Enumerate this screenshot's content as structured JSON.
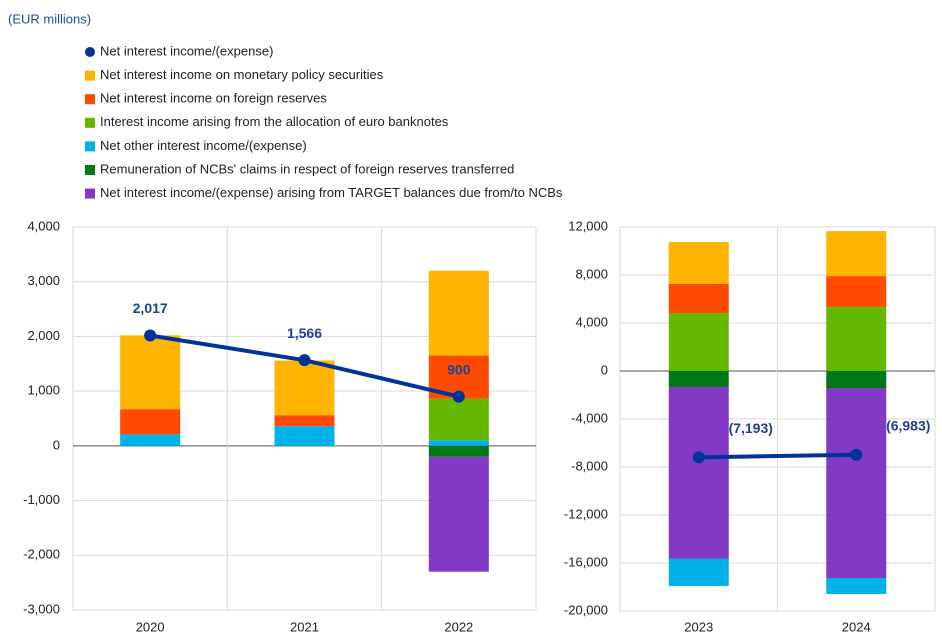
{
  "chart_data": {
    "type": "bar",
    "stacked": true,
    "subtitle": "(EUR millions)",
    "categories": [
      "2020",
      "2021",
      "2022",
      "2023",
      "2024"
    ],
    "series": [
      {
        "name": "Net interest income/(expense)",
        "type": "line",
        "color": "#003299",
        "values": [
          2017,
          1566,
          900,
          -7193,
          -6983
        ],
        "value_labels": [
          "2,017",
          "1,566",
          "900",
          "(7,193)",
          "(6,983)"
        ]
      },
      {
        "name": "Net interest income on monetary policy securities",
        "color": "#ffb400",
        "values": [
          1350,
          1000,
          1550,
          3500,
          3750
        ]
      },
      {
        "name": "Net interest income on foreign reserves",
        "color": "#ff4b00",
        "values": [
          460,
          200,
          790,
          2420,
          2580
        ]
      },
      {
        "name": "Interest income arising from the allocation of euro banknotes",
        "color": "#65b800",
        "values": [
          0,
          0,
          760,
          4830,
          5330
        ]
      },
      {
        "name": "Net other interest income/(expense)",
        "color": "#00b1ea",
        "values": [
          210,
          360,
          100,
          -2250,
          -1330
        ]
      },
      {
        "name": "Remuneration of NCBs' claims in respect of foreign reserves transferred",
        "color": "#007816",
        "values": [
          0,
          0,
          -200,
          -1330,
          -1420
        ]
      },
      {
        "name": "Net interest income/(expense) arising from TARGET balances due from/to NCBs",
        "color": "#8139c6",
        "values": [
          0,
          0,
          -2100,
          -14330,
          -15830
        ]
      }
    ],
    "ylim": [
      -3000,
      4000
    ],
    "yticks": [
      {
        "value": -3000,
        "label": "-3,000"
      },
      {
        "value": -2000,
        "label": "-2,000"
      },
      {
        "value": -1000,
        "label": "-1,000"
      },
      0,
      {
        "value": 1000,
        "label": "1,000"
      },
      {
        "value": 2000,
        "label": "2,000"
      },
      {
        "value": 3000,
        "label": "3,000"
      },
      {
        "value": 4000,
        "label": "4,000"
      }
    ],
    "y2lim": [
      -20000,
      12000
    ],
    "y2ticks": [
      {
        "value": -20000,
        "label": "-20,000"
      },
      {
        "value": -16000,
        "label": "-16,000"
      },
      {
        "value": -12000,
        "label": "-12,000"
      },
      {
        "value": -8000,
        "label": "-8,000"
      },
      {
        "value": -4000,
        "label": "-4,000"
      },
      0,
      {
        "value": 4000,
        "label": "4,000"
      },
      {
        "value": 8000,
        "label": "8,000"
      },
      {
        "value": 12000,
        "label": "12,000"
      }
    ],
    "grid": true,
    "legend": "top-left"
  }
}
